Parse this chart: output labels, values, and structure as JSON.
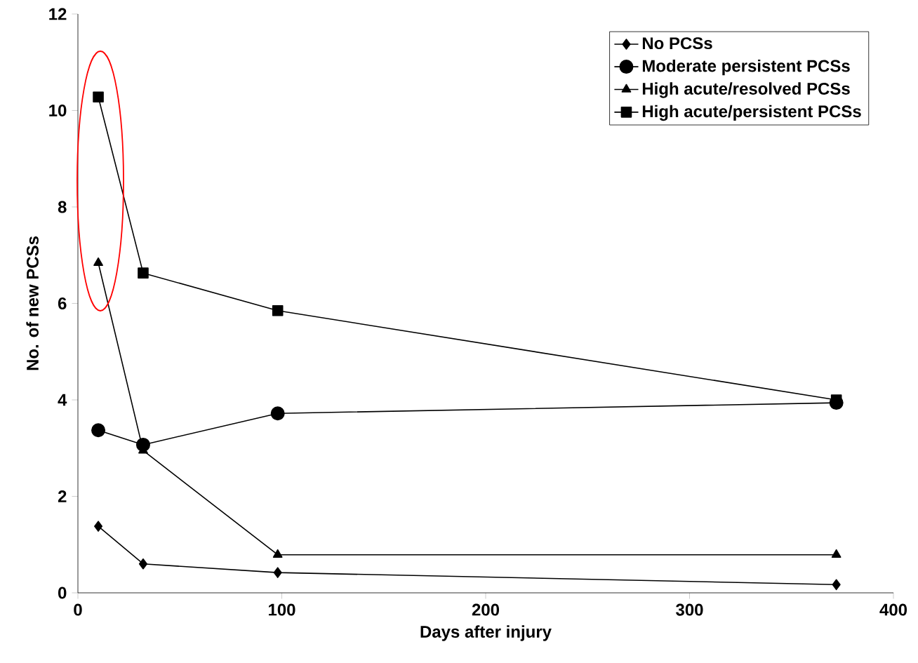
{
  "chart_data": {
    "type": "line",
    "xlabel": "Days after injury",
    "ylabel": "No. of new PCSs",
    "x": [
      10,
      32,
      98,
      372
    ],
    "series": [
      {
        "name": "No PCSs",
        "color": "#000000",
        "marker": "diamond",
        "values": [
          1.38,
          0.6,
          0.42,
          0.17
        ]
      },
      {
        "name": "Moderate persistent PCSs",
        "color": "#000000",
        "marker": "circle",
        "values": [
          3.37,
          3.07,
          3.72,
          3.94
        ]
      },
      {
        "name": "High acute/resolved PCSs",
        "color": "#000000",
        "marker": "triangle",
        "values": [
          6.84,
          2.95,
          0.79,
          0.79
        ]
      },
      {
        "name": "High acute/persistent PCSs",
        "color": "#000000",
        "marker": "square",
        "values": [
          10.28,
          6.63,
          5.85,
          4.0
        ]
      }
    ],
    "xlim": [
      0,
      400
    ],
    "xticks": [
      0,
      100,
      200,
      300,
      400
    ],
    "ylim": [
      0,
      12
    ],
    "yticks": [
      0,
      2,
      4,
      6,
      8,
      10,
      12
    ],
    "legend": "top right"
  }
}
